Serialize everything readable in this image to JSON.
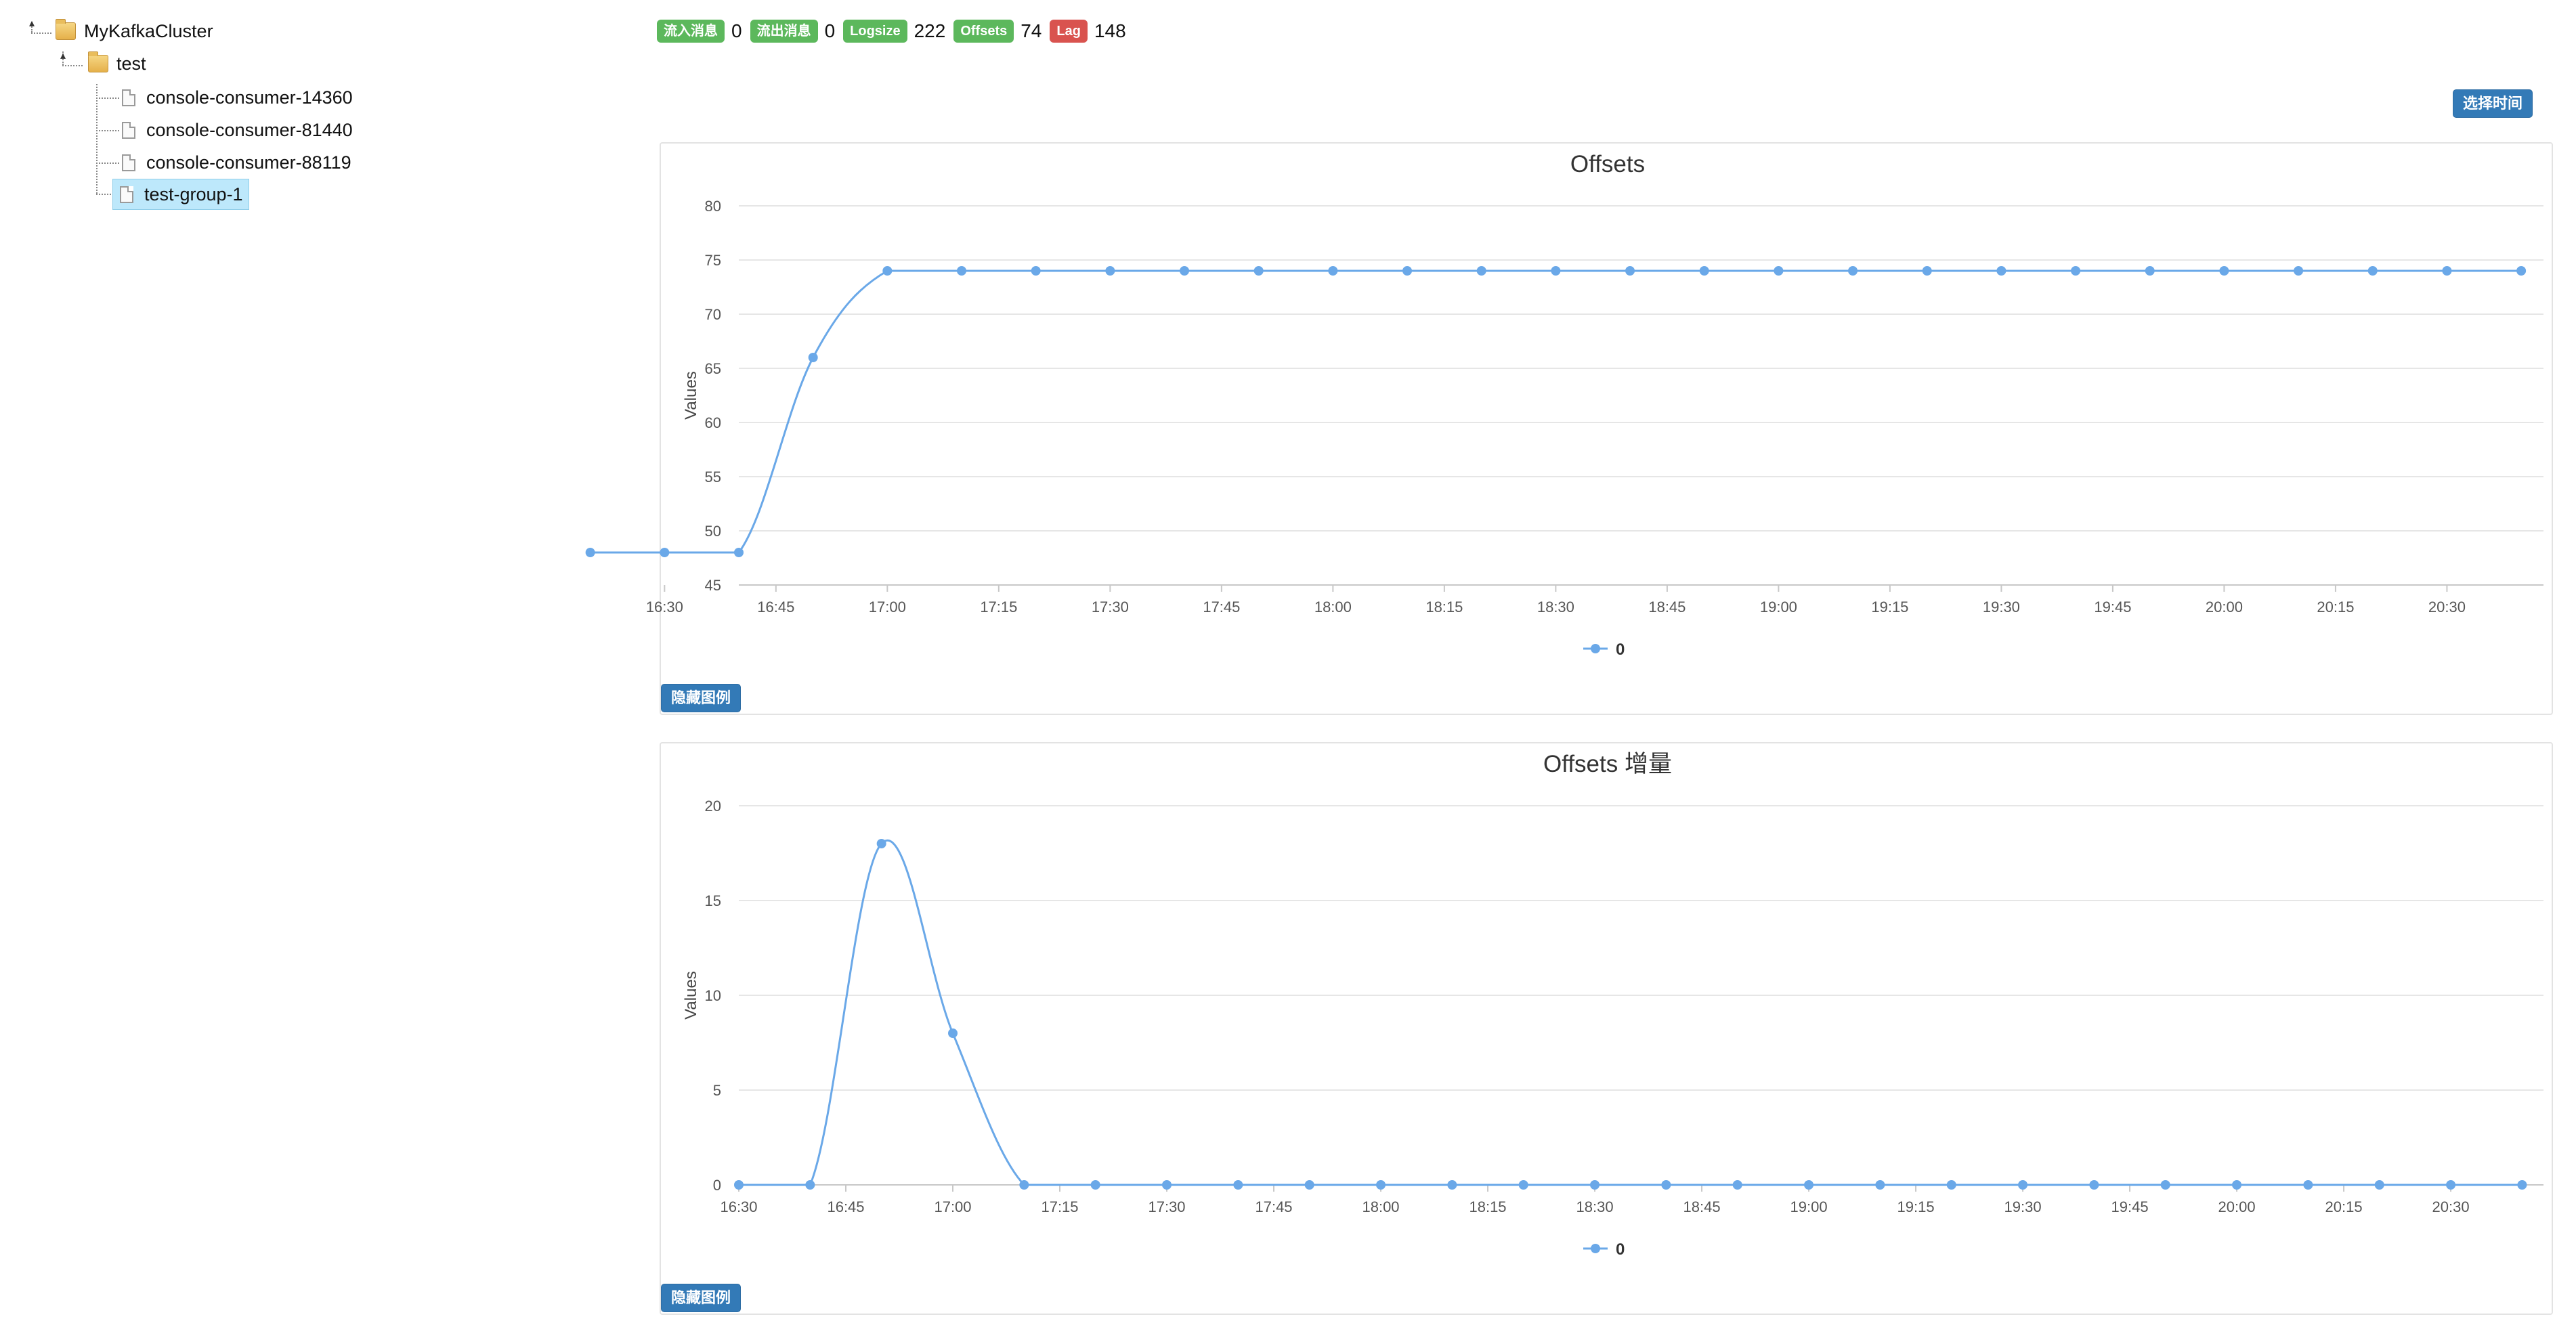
{
  "tree": {
    "root": "MyKafkaCluster",
    "topic": "test",
    "consumers": [
      "console-consumer-14360",
      "console-consumer-81440",
      "console-consumer-88119",
      "test-group-1"
    ],
    "selected_index": 3
  },
  "stats": [
    {
      "label": "流入消息",
      "value": "0",
      "color": "#5cb85c"
    },
    {
      "label": "流出消息",
      "value": "0",
      "color": "#5cb85c"
    },
    {
      "label": "Logsize",
      "value": "222",
      "color": "#5cb85c"
    },
    {
      "label": "Offsets",
      "value": "74",
      "color": "#5cb85c"
    },
    {
      "label": "Lag",
      "value": "148",
      "color": "#d9534f"
    }
  ],
  "select_time_label": "选择时间",
  "hide_legend_label": "隐藏图例",
  "chart_data": [
    {
      "type": "line",
      "title": "Offsets",
      "ylabel": "Values",
      "xlabel": "",
      "ylim": [
        45,
        80
      ],
      "yticks": [
        45,
        50,
        55,
        60,
        65,
        70,
        75,
        80
      ],
      "xlim_minutes": [
        1000,
        1243
      ],
      "xticks": [
        "16:30",
        "16:45",
        "17:00",
        "17:15",
        "17:30",
        "17:45",
        "18:00",
        "18:15",
        "18:30",
        "18:45",
        "19:00",
        "19:15",
        "19:30",
        "19:45",
        "20:00",
        "20:15",
        "20:30"
      ],
      "x": [
        "16:20",
        "16:30",
        "16:40",
        "16:50",
        "17:00",
        "17:10",
        "17:20",
        "17:30",
        "17:40",
        "17:50",
        "18:00",
        "18:10",
        "18:20",
        "18:30",
        "18:40",
        "18:50",
        "19:00",
        "19:10",
        "19:20",
        "19:30",
        "19:40",
        "19:50",
        "20:00",
        "20:10",
        "20:20",
        "20:30",
        "20:40"
      ],
      "series": [
        {
          "name": "0",
          "color": "#6aa8e8",
          "values": [
            48,
            48,
            48,
            66,
            74,
            74,
            74,
            74,
            74,
            74,
            74,
            74,
            74,
            74,
            74,
            74,
            74,
            74,
            74,
            74,
            74,
            74,
            74,
            74,
            74,
            74,
            74
          ]
        }
      ],
      "legend": "bottom-center",
      "grid": true
    },
    {
      "type": "line",
      "title": "Offsets 增量",
      "ylabel": "Values",
      "xlabel": "",
      "ylim": [
        0,
        20
      ],
      "yticks": [
        0,
        5,
        10,
        15,
        20
      ],
      "xlim_minutes": [
        990,
        1243
      ],
      "xticks": [
        "16:30",
        "16:45",
        "17:00",
        "17:15",
        "17:30",
        "17:45",
        "18:00",
        "18:15",
        "18:30",
        "18:45",
        "19:00",
        "19:15",
        "19:30",
        "19:45",
        "20:00",
        "20:15",
        "20:30"
      ],
      "x": [
        "16:30",
        "16:40",
        "16:50",
        "17:00",
        "17:10",
        "17:20",
        "17:30",
        "17:40",
        "17:50",
        "18:00",
        "18:10",
        "18:20",
        "18:30",
        "18:40",
        "18:50",
        "19:00",
        "19:10",
        "19:20",
        "19:30",
        "19:40",
        "19:50",
        "20:00",
        "20:10",
        "20:20",
        "20:30",
        "20:40"
      ],
      "series": [
        {
          "name": "0",
          "color": "#6aa8e8",
          "values": [
            0,
            0,
            18,
            8,
            0,
            0,
            0,
            0,
            0,
            0,
            0,
            0,
            0,
            0,
            0,
            0,
            0,
            0,
            0,
            0,
            0,
            0,
            0,
            0,
            0,
            0
          ]
        }
      ],
      "legend": "bottom-center",
      "grid": true
    }
  ]
}
